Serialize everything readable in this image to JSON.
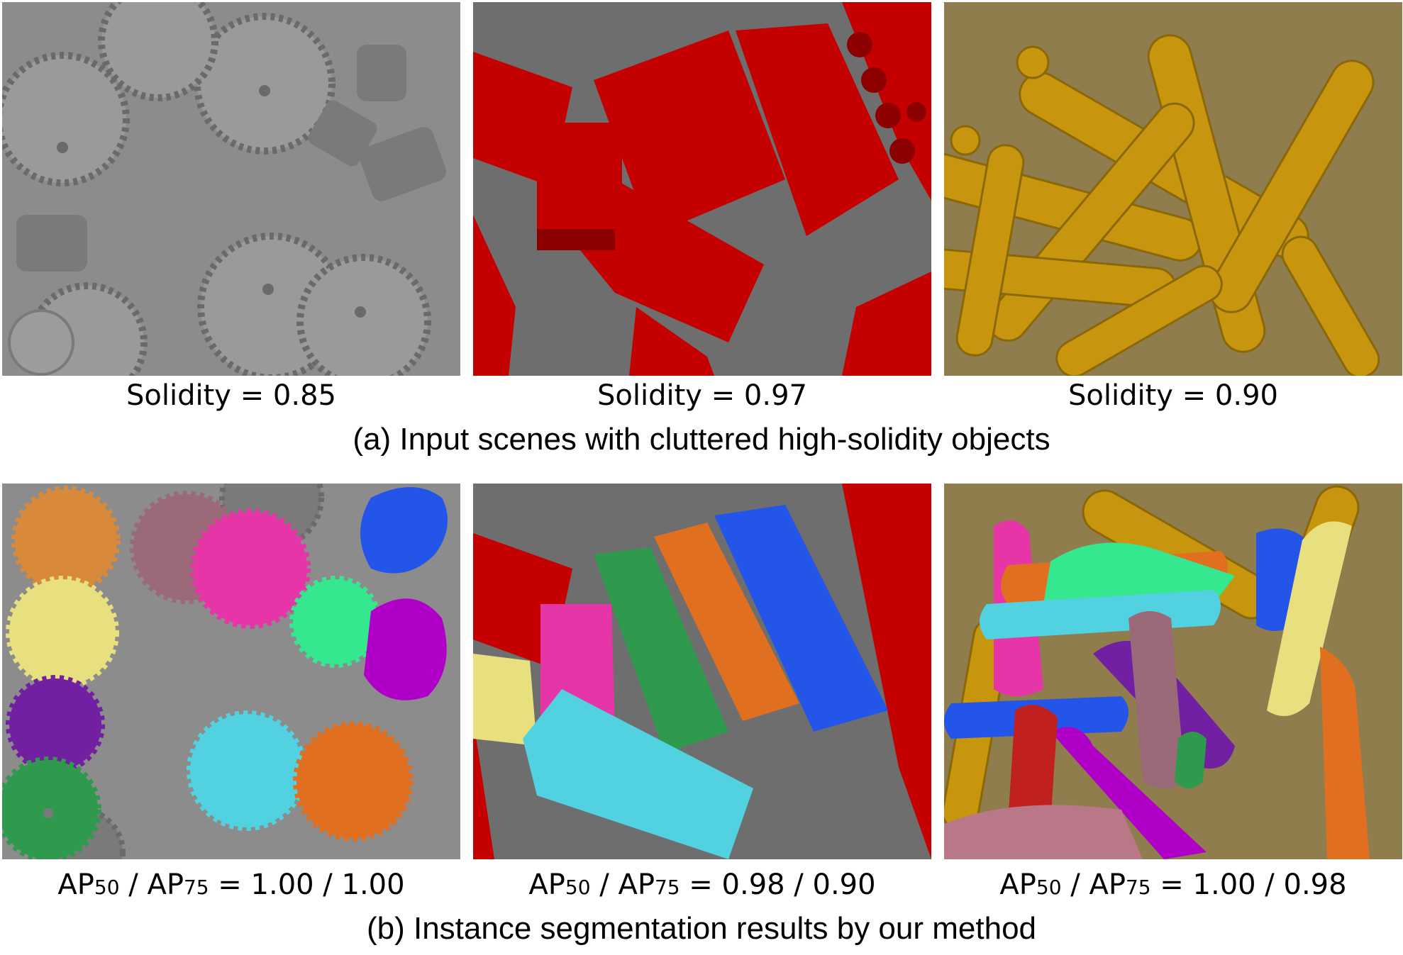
{
  "top_row": {
    "panels": [
      {
        "name": "gears-input",
        "bg": "#8c8c8c"
      },
      {
        "name": "bricks-input",
        "bg": "#6e6e6e"
      },
      {
        "name": "pawns-input",
        "bg": "#8f7d4e"
      }
    ],
    "labels": [
      "Solidity = 0.85",
      "Solidity = 0.97",
      "Solidity = 0.90"
    ],
    "caption": "(a) Input scenes with cluttered high-solidity objects"
  },
  "bottom_row": {
    "labels": [
      {
        "ap": "AP",
        "s1": "50",
        "sep": " / AP",
        "s2": "75",
        "vals": " = 1.00 / 1.00"
      },
      {
        "ap": "AP",
        "s1": "50",
        "sep": " / AP",
        "s2": "75",
        "vals": " = 0.98 / 0.90"
      },
      {
        "ap": "AP",
        "s1": "50",
        "sep": " / AP",
        "s2": "75",
        "vals": " = 1.00 / 0.98"
      }
    ],
    "caption": "(b) Instance segmentation results by our method"
  },
  "colors": {
    "gear_gray": "#8a8a8a",
    "brick_red": "#c40000",
    "pawn_gold": "#c8960e",
    "seg_orange": "#e07020",
    "seg_pink": "#e535a6",
    "seg_yellow": "#e8e07e",
    "seg_cyan": "#52d2e0",
    "seg_green": "#2f9a4e",
    "seg_mint": "#35e890",
    "seg_blue": "#2255e8",
    "seg_purple": "#7020a0",
    "seg_magenta": "#b000c8",
    "seg_mauve": "#9a6a78"
  }
}
